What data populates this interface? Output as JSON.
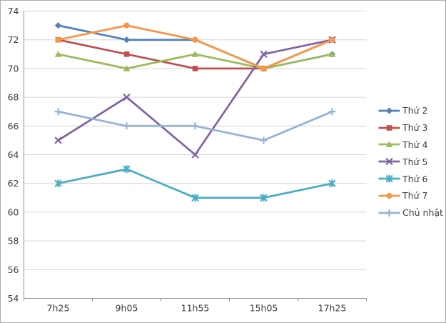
{
  "chart_data": {
    "type": "line",
    "title": "",
    "xlabel": "",
    "ylabel": "",
    "categories": [
      "7h25",
      "9h05",
      "11h55",
      "15h05",
      "17h25"
    ],
    "series": [
      {
        "name": "Thứ 2",
        "values": [
          73,
          72,
          72,
          70,
          71
        ],
        "color": "#4F81BD",
        "marker": "diamond"
      },
      {
        "name": "Thứ 3",
        "values": [
          72,
          71,
          70,
          70,
          72
        ],
        "color": "#C0504D",
        "marker": "square"
      },
      {
        "name": "Thứ 4",
        "values": [
          71,
          70,
          71,
          70,
          71
        ],
        "color": "#9BBB59",
        "marker": "triangle"
      },
      {
        "name": "Thứ 5",
        "values": [
          65,
          68,
          64,
          71,
          72
        ],
        "color": "#8064A2",
        "marker": "x"
      },
      {
        "name": "Thứ 6",
        "values": [
          62,
          63,
          61,
          61,
          62
        ],
        "color": "#4BACC6",
        "marker": "asterisk"
      },
      {
        "name": "Thứ 7",
        "values": [
          72,
          73,
          72,
          70,
          72
        ],
        "color": "#F79646",
        "marker": "circle"
      },
      {
        "name": "Chủ nhật",
        "values": [
          67,
          66,
          66,
          65,
          67
        ],
        "color": "#95B3D7",
        "marker": "plus"
      }
    ],
    "ylim": [
      54,
      74
    ],
    "ytick_step": 2,
    "grid": true,
    "legend_position": "right",
    "colors": {
      "grid": "#d6d6d6",
      "axis": "#8e8e8e",
      "tick_text": "#3d3d3d",
      "background": "#ffffff"
    }
  }
}
